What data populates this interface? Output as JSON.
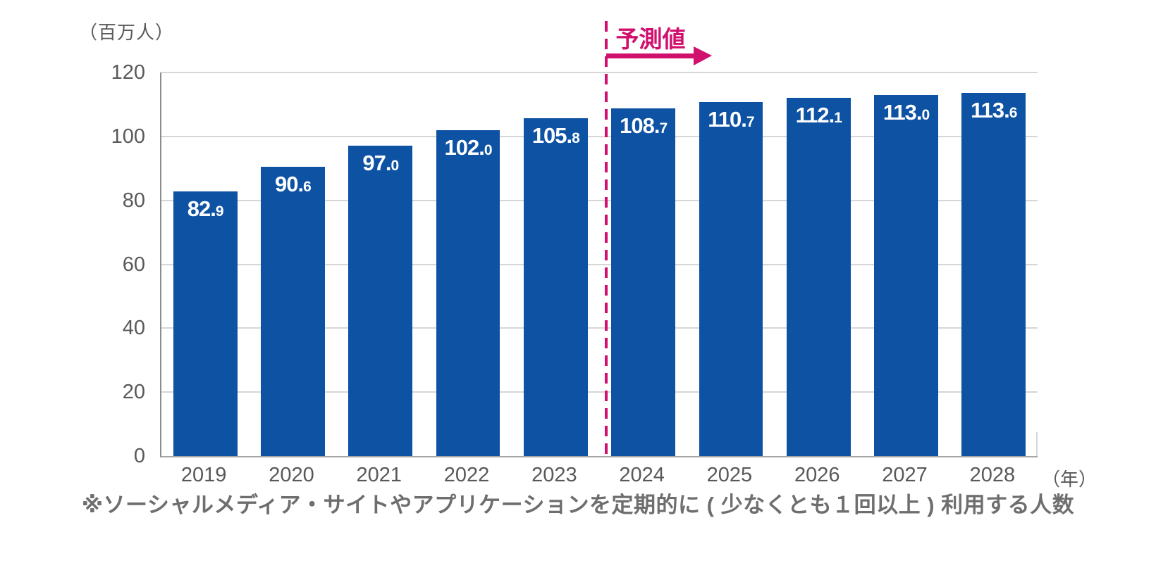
{
  "page": {
    "background": "#ffffff"
  },
  "chart": {
    "unit_label": "（百万人）",
    "axis_unit_suffix": "（年）",
    "forecast": {
      "label": "予測値",
      "starts_at_category": "2024"
    },
    "footnote": "※ソーシャルメディア・サイトやアプリケーションを定期的に ( 少なくとも１回以上 ) 利用する人数",
    "colors": {
      "bar": "#0d52a3",
      "value_label": "#ffffff",
      "forecast_accent": "#d1106e",
      "gridline": "#d6d6d6",
      "axis_line": "#8c8c8c",
      "axis_line2": "#a6a6a6",
      "tick_label": "#595959",
      "footnote_text": "#6e6e6e"
    }
  },
  "chart_data": {
    "type": "bar",
    "title": "",
    "categories": [
      "2019",
      "2020",
      "2021",
      "2022",
      "2023",
      "2024",
      "2025",
      "2026",
      "2027",
      "2028"
    ],
    "values": [
      82.9,
      90.6,
      97.0,
      102.0,
      105.8,
      108.7,
      110.7,
      112.1,
      113.0,
      113.6
    ],
    "xlabel": "（年）",
    "ylabel": "（百万人）",
    "ylim": [
      0,
      120
    ],
    "yticks": [
      0,
      20,
      40,
      60,
      80,
      100,
      120
    ],
    "grid": "horizontal",
    "legend": "none",
    "forecast_from_index": 5,
    "value_label_format": "one_decimal_inside_bar_top"
  }
}
